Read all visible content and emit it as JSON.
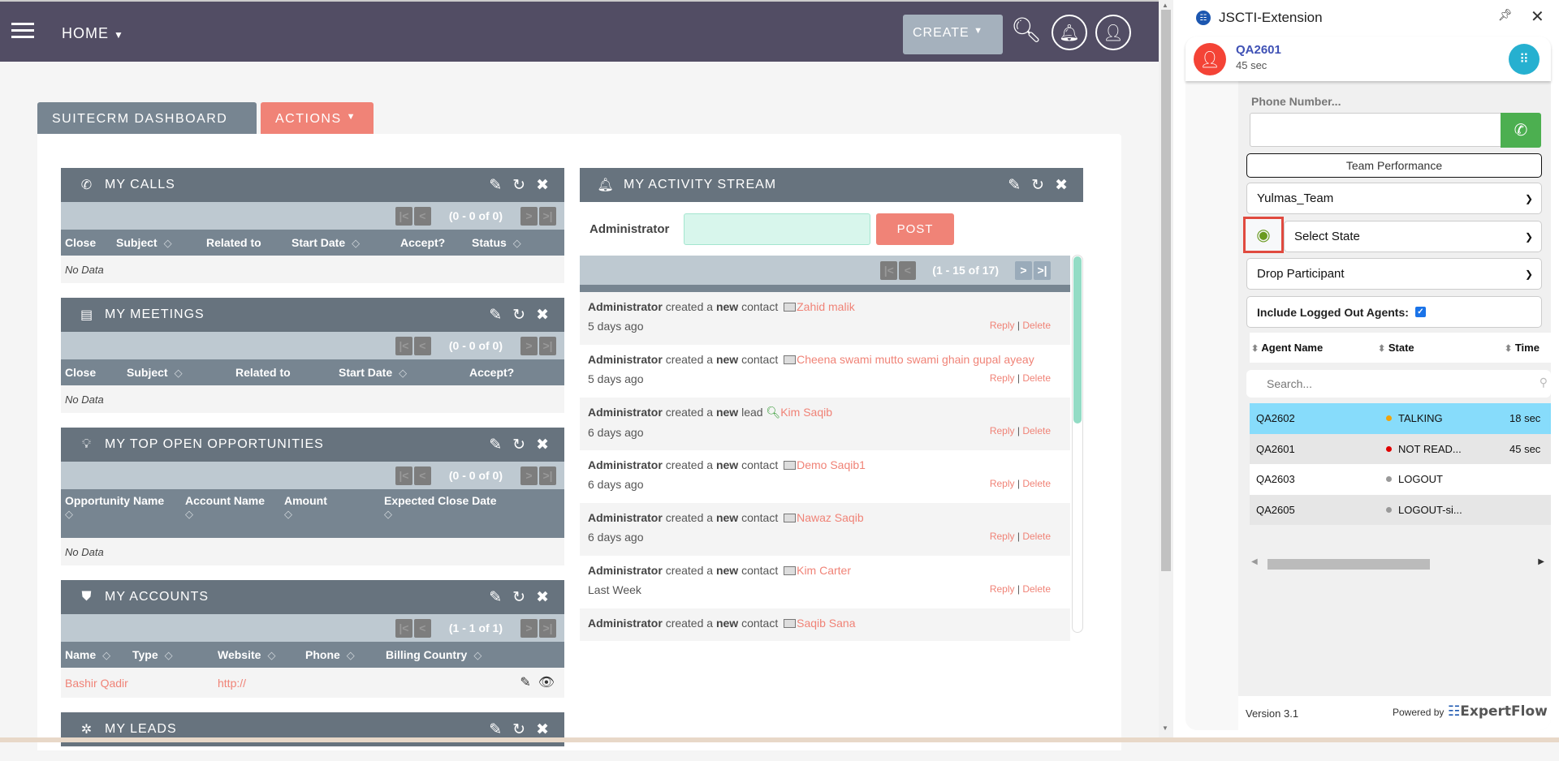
{
  "topbar": {
    "home_label": "HOME",
    "create_label": "CREATE",
    "icons": [
      "menu-icon",
      "search-icon",
      "notification-bell-icon",
      "user-profile-icon"
    ]
  },
  "tabs": {
    "dashboard": "SUITECRM DASHBOARD",
    "actions": "ACTIONS"
  },
  "dashlets": [
    {
      "title": "MY CALLS",
      "icon": "phone-icon",
      "pagination": "(0 - 0 of 0)",
      "columns": [
        {
          "label": "Close",
          "sortable": false
        },
        {
          "label": "Subject",
          "sortable": true
        },
        {
          "label": "Related to",
          "sortable": false
        },
        {
          "label": "Start Date",
          "sortable": true
        },
        {
          "label": "Accept?",
          "sortable": false
        },
        {
          "label": "Status",
          "sortable": true
        }
      ],
      "empty": "No Data"
    },
    {
      "title": "MY MEETINGS",
      "icon": "calendar-icon",
      "pagination": "(0 - 0 of 0)",
      "columns": [
        {
          "label": "Close",
          "sortable": false
        },
        {
          "label": "Subject",
          "sortable": true
        },
        {
          "label": "Related to",
          "sortable": false
        },
        {
          "label": "Start Date",
          "sortable": true
        },
        {
          "label": "Accept?",
          "sortable": false
        }
      ],
      "empty": "No Data"
    },
    {
      "title": "MY TOP OPEN OPPORTUNITIES",
      "icon": "lightbulb-icon",
      "pagination": "(0 - 0 of 0)",
      "columns": [
        {
          "label": "Opportunity Name",
          "sortable": true
        },
        {
          "label": "Account Name",
          "sortable": true
        },
        {
          "label": "Amount",
          "sortable": true
        },
        {
          "label": "Expected Close Date",
          "sortable": true
        }
      ],
      "empty": "No Data"
    },
    {
      "title": "MY ACCOUNTS",
      "icon": "shield-icon",
      "pagination": "(1 - 1 of 1)",
      "columns": [
        {
          "label": "Name",
          "sortable": true
        },
        {
          "label": "Type",
          "sortable": true
        },
        {
          "label": "Website",
          "sortable": true
        },
        {
          "label": "Phone",
          "sortable": true
        },
        {
          "label": "Billing Country",
          "sortable": true
        }
      ],
      "rows": [
        [
          "Bashir Qadir",
          "",
          "http://",
          "",
          ""
        ]
      ]
    },
    {
      "title": "MY LEADS",
      "icon": "gear-icon"
    }
  ],
  "activity": {
    "title": "MY ACTIVITY STREAM",
    "icon": "bell-icon",
    "user": "Administrator",
    "post_label": "POST",
    "post_value": "",
    "pagination": "(1 - 15 of 17)",
    "reply": "Reply",
    "delete": "Delete",
    "items": [
      {
        "actor": "Administrator",
        "verb": "created a",
        "new": "new",
        "type": "contact",
        "name": "Zahid malik",
        "time": "5 days ago"
      },
      {
        "actor": "Administrator",
        "verb": "created a",
        "new": "new",
        "type": "contact",
        "name": "Cheena swami mutto swami ghain gupal ayeay",
        "time": "5 days ago"
      },
      {
        "actor": "Administrator",
        "verb": "created a",
        "new": "new",
        "type": "lead",
        "name": "Kim Saqib",
        "time": "6 days ago"
      },
      {
        "actor": "Administrator",
        "verb": "created a",
        "new": "new",
        "type": "contact",
        "name": "Demo Saqib1",
        "time": "6 days ago"
      },
      {
        "actor": "Administrator",
        "verb": "created a",
        "new": "new",
        "type": "contact",
        "name": "Nawaz Saqib",
        "time": "6 days ago"
      },
      {
        "actor": "Administrator",
        "verb": "created a",
        "new": "new",
        "type": "contact",
        "name": "Kim Carter",
        "time": "Last Week"
      },
      {
        "actor": "Administrator",
        "verb": "created a",
        "new": "new",
        "type": "contact",
        "name": "Saqib Sana",
        "time": ""
      }
    ]
  },
  "extension": {
    "title": "JSCTI-Extension",
    "agent": {
      "name": "QA2601",
      "timer": "45 sec"
    },
    "phone_label": "Phone Number...",
    "phone_value": "",
    "team_performance": "Team Performance",
    "team_select": "Yulmas_Team",
    "state_select": "Select State",
    "drop_participant": "Drop Participant",
    "include_logged_out": "Include Logged Out Agents:",
    "include_logged_out_checked": true,
    "table": {
      "headers": [
        "Agent Name",
        "State",
        "Time"
      ],
      "search_placeholder": "Search...",
      "rows": [
        {
          "agent": "QA2602",
          "state": "TALKING",
          "time": "18 sec",
          "color": "#f0a30a"
        },
        {
          "agent": "QA2601",
          "state": "NOT READ...",
          "time": "45 sec",
          "color": "#e00000"
        },
        {
          "agent": "QA2603",
          "state": "LOGOUT",
          "time": "",
          "color": "#999999"
        },
        {
          "agent": "QA2605",
          "state": "LOGOUT-si...",
          "time": "",
          "color": "#999999"
        }
      ]
    },
    "version": "Version 3.1",
    "powered_by": "Powered by",
    "brand": "ExpertFlow"
  },
  "colors": {
    "topbar": "#524d64",
    "accent": "#f08377",
    "dashlet_header": "#67737e",
    "talking_row": "#87dcfb",
    "call_button": "#4caf50"
  }
}
